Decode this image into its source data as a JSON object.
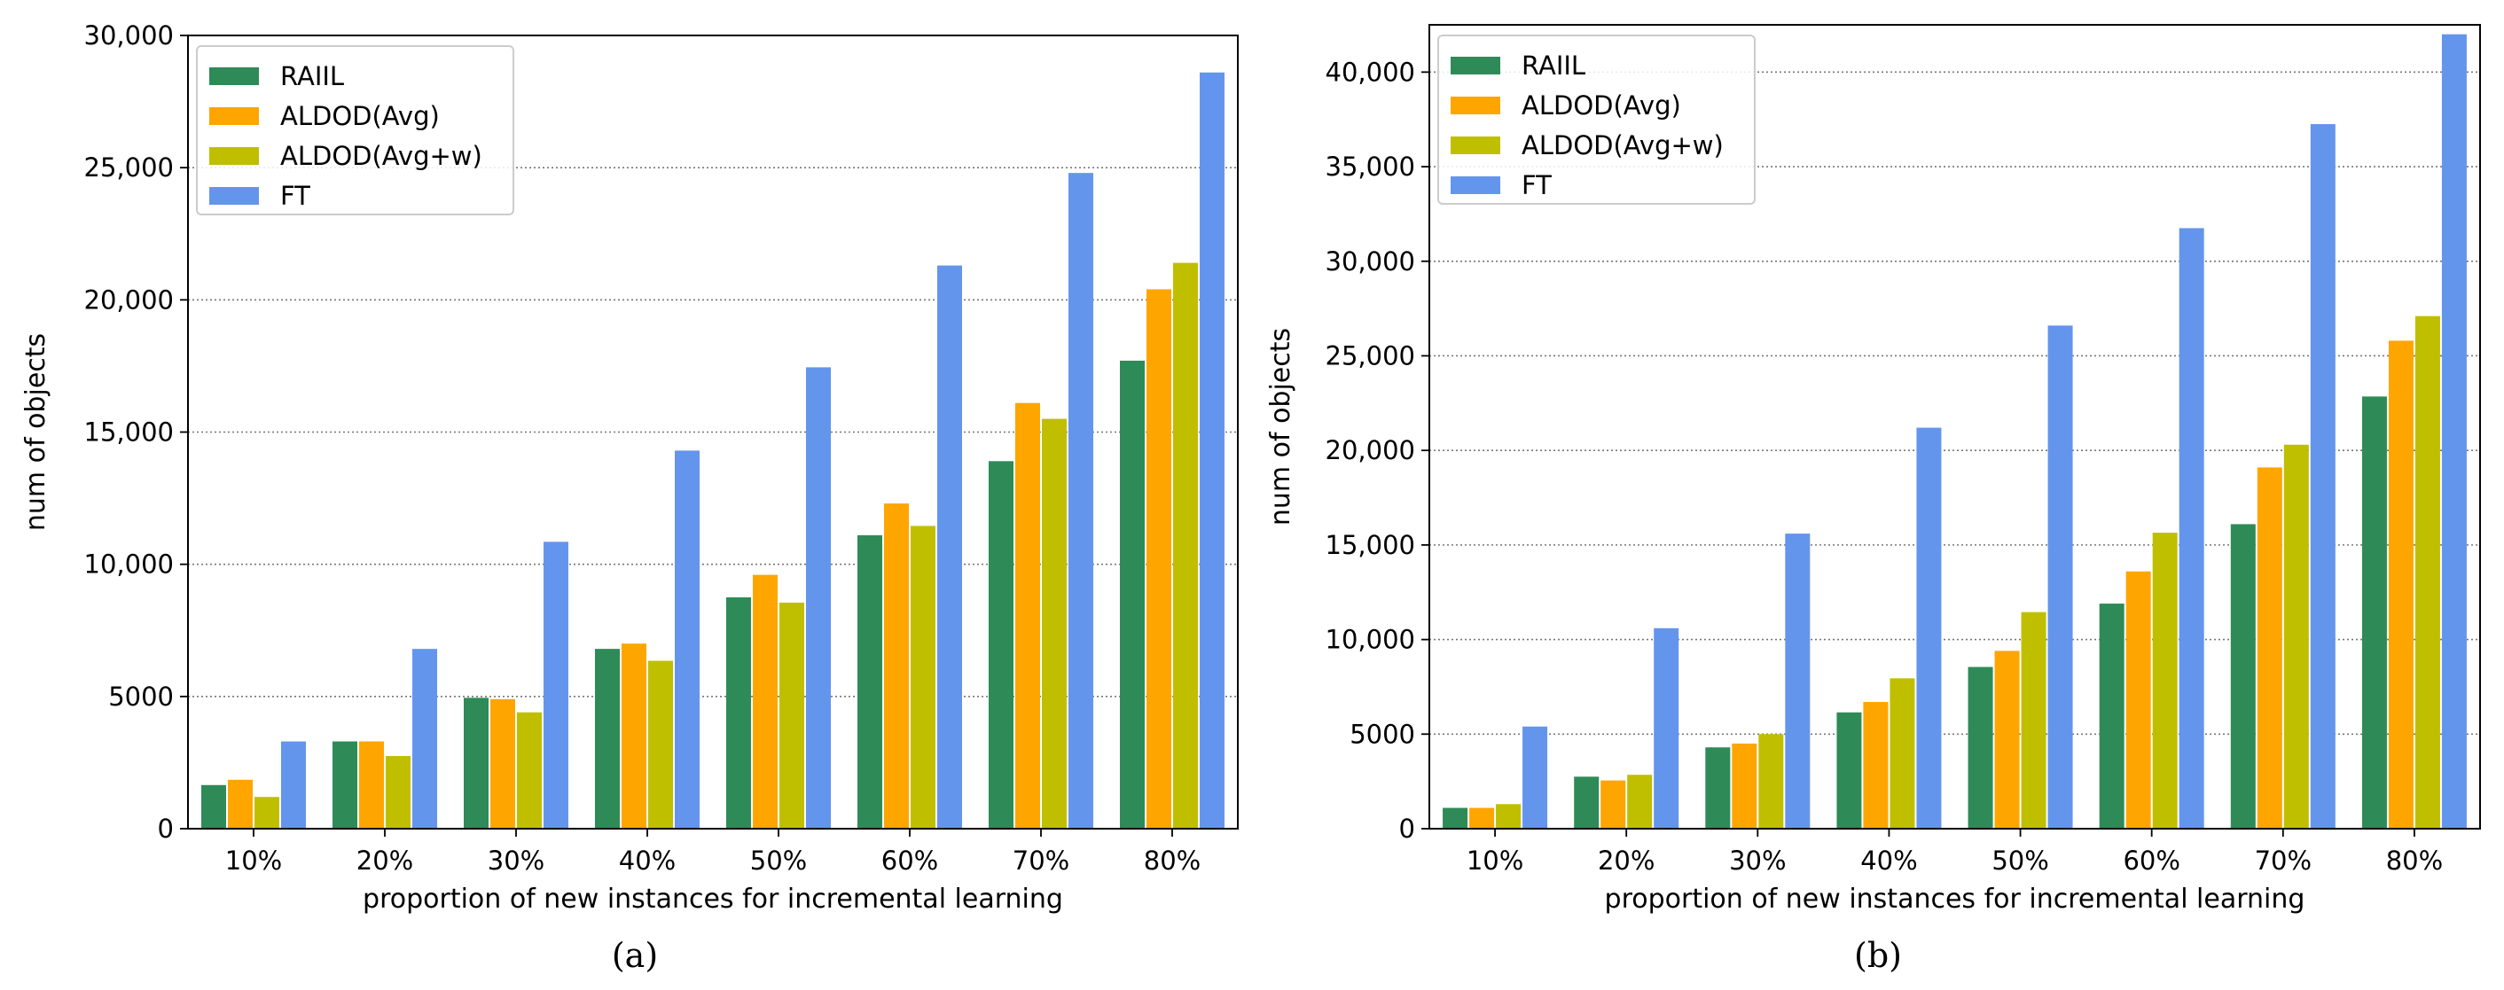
{
  "figure": {
    "legend_position": "upper-left"
  },
  "colors": {
    "RAIIL": "#2e8b57",
    "ALDOD(Avg)": "#ffa500",
    "ALDOD(Avg+w)": "#bfbf00",
    "FT": "#6495ed",
    "grid": "#777777"
  },
  "chart_data": [
    {
      "caption": "(a)",
      "type": "bar",
      "title": "",
      "xlabel": "proportion of new instances for incremental learning",
      "ylabel": "num of objects",
      "ylim": [
        0,
        30000
      ],
      "yticks": [
        0,
        5000,
        10000,
        15000,
        20000,
        25000,
        30000
      ],
      "ytick_labels": [
        "0",
        "5000",
        "10,000",
        "15,000",
        "20,000",
        "25,000",
        "30,000"
      ],
      "grid": "horizontal dotted",
      "categories": [
        "10%",
        "20%",
        "30%",
        "40%",
        "50%",
        "60%",
        "70%",
        "80%"
      ],
      "series": [
        {
          "name": "RAIIL",
          "values": [
            1650,
            3300,
            4950,
            6800,
            8750,
            11100,
            13900,
            17700
          ]
        },
        {
          "name": "ALDOD(Avg)",
          "values": [
            1850,
            3300,
            4900,
            7000,
            9600,
            12300,
            16100,
            20400
          ]
        },
        {
          "name": "ALDOD(Avg+w)",
          "values": [
            1200,
            2750,
            4400,
            6350,
            8550,
            11450,
            15500,
            21400
          ]
        },
        {
          "name": "FT",
          "values": [
            3300,
            6800,
            10850,
            14300,
            17450,
            21300,
            24800,
            28600
          ]
        }
      ]
    },
    {
      "caption": "(b)",
      "type": "bar",
      "title": "",
      "xlabel": "proportion of new instances for incremental learning",
      "ylabel": "num of objects",
      "ylim": [
        0,
        42500
      ],
      "yticks": [
        0,
        5000,
        10000,
        15000,
        20000,
        25000,
        30000,
        35000,
        40000
      ],
      "ytick_labels": [
        "0",
        "5000",
        "10,000",
        "15,000",
        "20,000",
        "25,000",
        "30,000",
        "35,000",
        "40,000"
      ],
      "grid": "horizontal dotted",
      "categories": [
        "10%",
        "20%",
        "30%",
        "40%",
        "50%",
        "60%",
        "70%",
        "80%"
      ],
      "series": [
        {
          "name": "RAIIL",
          "values": [
            1100,
            2750,
            4300,
            6150,
            8550,
            11900,
            16100,
            22850
          ]
        },
        {
          "name": "ALDOD(Avg)",
          "values": [
            1100,
            2550,
            4500,
            6700,
            9400,
            13600,
            19100,
            25800
          ]
        },
        {
          "name": "ALDOD(Avg+w)",
          "values": [
            1300,
            2850,
            5000,
            7950,
            11450,
            15650,
            20300,
            27100
          ]
        },
        {
          "name": "FT",
          "values": [
            5400,
            10600,
            15600,
            21200,
            26600,
            31750,
            37250,
            42000
          ]
        }
      ]
    }
  ]
}
